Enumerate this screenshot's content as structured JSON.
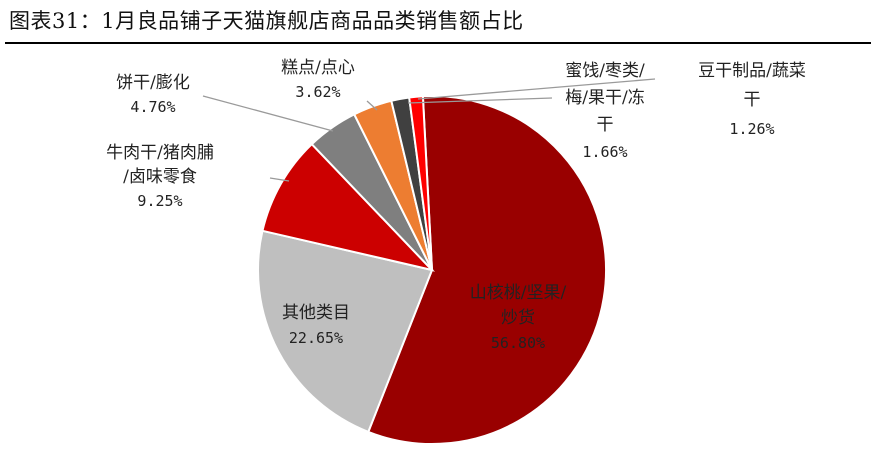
{
  "title": "图表31：1月良品铺子天猫旗舰店商品品类销售额占比",
  "chart_data": {
    "type": "pie",
    "title": "图表31：1月良品铺子天猫旗舰店商品品类销售额占比",
    "slices": [
      {
        "label_lines": [
          "山核桃/坚果/",
          "炒货"
        ],
        "value": 56.8,
        "value_text": "56.80%",
        "color": "#990000"
      },
      {
        "label_lines": [
          "其他类目"
        ],
        "value": 22.65,
        "value_text": "22.65%",
        "color": "#bfbfbf"
      },
      {
        "label_lines": [
          "牛肉干/猪肉脯",
          "/卤味零食"
        ],
        "value": 9.25,
        "value_text": "9.25%",
        "color": "#cc0000"
      },
      {
        "label_lines": [
          "饼干/膨化"
        ],
        "value": 4.76,
        "value_text": "4.76%",
        "color": "#7f7f7f"
      },
      {
        "label_lines": [
          "糕点/点心"
        ],
        "value": 3.62,
        "value_text": "3.62%",
        "color": "#ed7d31"
      },
      {
        "label_lines": [
          "蜜饯/枣类/",
          "梅/果干/冻",
          "干"
        ],
        "value": 1.66,
        "value_text": "1.66%",
        "color": "#404040"
      },
      {
        "label_lines": [
          "豆干制品/蔬菜",
          "干"
        ],
        "value": 1.26,
        "value_text": "1.26%",
        "color": "#ff0000"
      }
    ]
  }
}
